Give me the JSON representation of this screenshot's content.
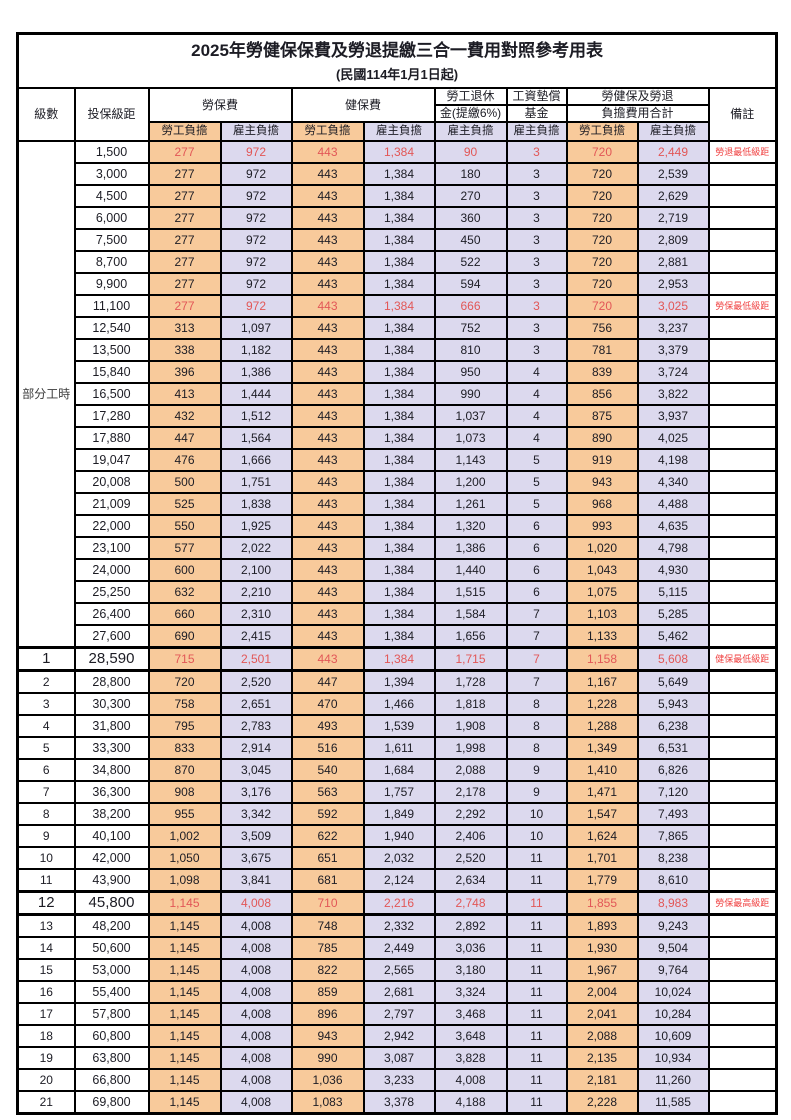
{
  "title": {
    "main": "2025年勞健保保費及勞退提繳三合一費用對照參考用表",
    "sub": "(民國114年1月1日起)"
  },
  "colors": {
    "employee_bg": "#f8ca9b",
    "employer_bg": "#dcd9ee",
    "num_red": "#e25757",
    "remark_red": "#f04343",
    "border": "#000000"
  },
  "table": {
    "header": {
      "level": "級數",
      "bracket": "投保級距",
      "labor_ins": "勞保費",
      "health_ins": "健保費",
      "pension1": "勞工退休",
      "pension2": "金(提繳6%)",
      "fund1": "工資墊償",
      "fund2": "基金",
      "total1": "勞健保及勞退",
      "total2": "負擔費用合計",
      "remark": "備註",
      "employee": "勞工負擔",
      "employer": "雇主負擔"
    }
  },
  "part_time": {
    "label": "部分工時",
    "rowspan": 23
  },
  "rows": [
    {
      "level": "",
      "bracket": "1,500",
      "values": [
        "277",
        "972",
        "443",
        "1,384",
        "90",
        "3",
        "720",
        "2,449"
      ],
      "remark": "勞退最低級距",
      "red": true,
      "em": false
    },
    {
      "level": "",
      "bracket": "3,000",
      "values": [
        "277",
        "972",
        "443",
        "1,384",
        "180",
        "3",
        "720",
        "2,539"
      ],
      "remark": "",
      "red": false,
      "em": false
    },
    {
      "level": "",
      "bracket": "4,500",
      "values": [
        "277",
        "972",
        "443",
        "1,384",
        "270",
        "3",
        "720",
        "2,629"
      ],
      "remark": "",
      "red": false,
      "em": false
    },
    {
      "level": "",
      "bracket": "6,000",
      "values": [
        "277",
        "972",
        "443",
        "1,384",
        "360",
        "3",
        "720",
        "2,719"
      ],
      "remark": "",
      "red": false,
      "em": false
    },
    {
      "level": "",
      "bracket": "7,500",
      "values": [
        "277",
        "972",
        "443",
        "1,384",
        "450",
        "3",
        "720",
        "2,809"
      ],
      "remark": "",
      "red": false,
      "em": false
    },
    {
      "level": "",
      "bracket": "8,700",
      "values": [
        "277",
        "972",
        "443",
        "1,384",
        "522",
        "3",
        "720",
        "2,881"
      ],
      "remark": "",
      "red": false,
      "em": false
    },
    {
      "level": "",
      "bracket": "9,900",
      "values": [
        "277",
        "972",
        "443",
        "1,384",
        "594",
        "3",
        "720",
        "2,953"
      ],
      "remark": "",
      "red": false,
      "em": false
    },
    {
      "level": "",
      "bracket": "11,100",
      "values": [
        "277",
        "972",
        "443",
        "1,384",
        "666",
        "3",
        "720",
        "3,025"
      ],
      "remark": "勞保最低級距",
      "red": true,
      "em": false
    },
    {
      "level": "",
      "bracket": "12,540",
      "values": [
        "313",
        "1,097",
        "443",
        "1,384",
        "752",
        "3",
        "756",
        "3,237"
      ],
      "remark": "",
      "red": false,
      "em": false
    },
    {
      "level": "",
      "bracket": "13,500",
      "values": [
        "338",
        "1,182",
        "443",
        "1,384",
        "810",
        "3",
        "781",
        "3,379"
      ],
      "remark": "",
      "red": false,
      "em": false
    },
    {
      "level": "",
      "bracket": "15,840",
      "values": [
        "396",
        "1,386",
        "443",
        "1,384",
        "950",
        "4",
        "839",
        "3,724"
      ],
      "remark": "",
      "red": false,
      "em": false
    },
    {
      "level": "",
      "bracket": "16,500",
      "values": [
        "413",
        "1,444",
        "443",
        "1,384",
        "990",
        "4",
        "856",
        "3,822"
      ],
      "remark": "",
      "red": false,
      "em": false
    },
    {
      "level": "",
      "bracket": "17,280",
      "values": [
        "432",
        "1,512",
        "443",
        "1,384",
        "1,037",
        "4",
        "875",
        "3,937"
      ],
      "remark": "",
      "red": false,
      "em": false
    },
    {
      "level": "",
      "bracket": "17,880",
      "values": [
        "447",
        "1,564",
        "443",
        "1,384",
        "1,073",
        "4",
        "890",
        "4,025"
      ],
      "remark": "",
      "red": false,
      "em": false
    },
    {
      "level": "",
      "bracket": "19,047",
      "values": [
        "476",
        "1,666",
        "443",
        "1,384",
        "1,143",
        "5",
        "919",
        "4,198"
      ],
      "remark": "",
      "red": false,
      "em": false
    },
    {
      "level": "",
      "bracket": "20,008",
      "values": [
        "500",
        "1,751",
        "443",
        "1,384",
        "1,200",
        "5",
        "943",
        "4,340"
      ],
      "remark": "",
      "red": false,
      "em": false
    },
    {
      "level": "",
      "bracket": "21,009",
      "values": [
        "525",
        "1,838",
        "443",
        "1,384",
        "1,261",
        "5",
        "968",
        "4,488"
      ],
      "remark": "",
      "red": false,
      "em": false
    },
    {
      "level": "",
      "bracket": "22,000",
      "values": [
        "550",
        "1,925",
        "443",
        "1,384",
        "1,320",
        "6",
        "993",
        "4,635"
      ],
      "remark": "",
      "red": false,
      "em": false
    },
    {
      "level": "",
      "bracket": "23,100",
      "values": [
        "577",
        "2,022",
        "443",
        "1,384",
        "1,386",
        "6",
        "1,020",
        "4,798"
      ],
      "remark": "",
      "red": false,
      "em": false
    },
    {
      "level": "",
      "bracket": "24,000",
      "values": [
        "600",
        "2,100",
        "443",
        "1,384",
        "1,440",
        "6",
        "1,043",
        "4,930"
      ],
      "remark": "",
      "red": false,
      "em": false
    },
    {
      "level": "",
      "bracket": "25,250",
      "values": [
        "632",
        "2,210",
        "443",
        "1,384",
        "1,515",
        "6",
        "1,075",
        "5,115"
      ],
      "remark": "",
      "red": false,
      "em": false
    },
    {
      "level": "",
      "bracket": "26,400",
      "values": [
        "660",
        "2,310",
        "443",
        "1,384",
        "1,584",
        "7",
        "1,103",
        "5,285"
      ],
      "remark": "",
      "red": false,
      "em": false
    },
    {
      "level": "",
      "bracket": "27,600",
      "values": [
        "690",
        "2,415",
        "443",
        "1,384",
        "1,656",
        "7",
        "1,133",
        "5,462"
      ],
      "remark": "",
      "red": false,
      "em": false
    },
    {
      "level": "1",
      "bracket": "28,590",
      "values": [
        "715",
        "2,501",
        "443",
        "1,384",
        "1,715",
        "7",
        "1,158",
        "5,608"
      ],
      "remark": "健保最低級距",
      "red": true,
      "em": true
    },
    {
      "level": "2",
      "bracket": "28,800",
      "values": [
        "720",
        "2,520",
        "447",
        "1,394",
        "1,728",
        "7",
        "1,167",
        "5,649"
      ],
      "remark": "",
      "red": false,
      "em": false
    },
    {
      "level": "3",
      "bracket": "30,300",
      "values": [
        "758",
        "2,651",
        "470",
        "1,466",
        "1,818",
        "8",
        "1,228",
        "5,943"
      ],
      "remark": "",
      "red": false,
      "em": false
    },
    {
      "level": "4",
      "bracket": "31,800",
      "values": [
        "795",
        "2,783",
        "493",
        "1,539",
        "1,908",
        "8",
        "1,288",
        "6,238"
      ],
      "remark": "",
      "red": false,
      "em": false
    },
    {
      "level": "5",
      "bracket": "33,300",
      "values": [
        "833",
        "2,914",
        "516",
        "1,611",
        "1,998",
        "8",
        "1,349",
        "6,531"
      ],
      "remark": "",
      "red": false,
      "em": false
    },
    {
      "level": "6",
      "bracket": "34,800",
      "values": [
        "870",
        "3,045",
        "540",
        "1,684",
        "2,088",
        "9",
        "1,410",
        "6,826"
      ],
      "remark": "",
      "red": false,
      "em": false
    },
    {
      "level": "7",
      "bracket": "36,300",
      "values": [
        "908",
        "3,176",
        "563",
        "1,757",
        "2,178",
        "9",
        "1,471",
        "7,120"
      ],
      "remark": "",
      "red": false,
      "em": false
    },
    {
      "level": "8",
      "bracket": "38,200",
      "values": [
        "955",
        "3,342",
        "592",
        "1,849",
        "2,292",
        "10",
        "1,547",
        "7,493"
      ],
      "remark": "",
      "red": false,
      "em": false
    },
    {
      "level": "9",
      "bracket": "40,100",
      "values": [
        "1,002",
        "3,509",
        "622",
        "1,940",
        "2,406",
        "10",
        "1,624",
        "7,865"
      ],
      "remark": "",
      "red": false,
      "em": false
    },
    {
      "level": "10",
      "bracket": "42,000",
      "values": [
        "1,050",
        "3,675",
        "651",
        "2,032",
        "2,520",
        "11",
        "1,701",
        "8,238"
      ],
      "remark": "",
      "red": false,
      "em": false
    },
    {
      "level": "11",
      "bracket": "43,900",
      "values": [
        "1,098",
        "3,841",
        "681",
        "2,124",
        "2,634",
        "11",
        "1,779",
        "8,610"
      ],
      "remark": "",
      "red": false,
      "em": false
    },
    {
      "level": "12",
      "bracket": "45,800",
      "values": [
        "1,145",
        "4,008",
        "710",
        "2,216",
        "2,748",
        "11",
        "1,855",
        "8,983"
      ],
      "remark": "勞保最高級距",
      "red": true,
      "em": true
    },
    {
      "level": "13",
      "bracket": "48,200",
      "values": [
        "1,145",
        "4,008",
        "748",
        "2,332",
        "2,892",
        "11",
        "1,893",
        "9,243"
      ],
      "remark": "",
      "red": false,
      "em": false
    },
    {
      "level": "14",
      "bracket": "50,600",
      "values": [
        "1,145",
        "4,008",
        "785",
        "2,449",
        "3,036",
        "11",
        "1,930",
        "9,504"
      ],
      "remark": "",
      "red": false,
      "em": false
    },
    {
      "level": "15",
      "bracket": "53,000",
      "values": [
        "1,145",
        "4,008",
        "822",
        "2,565",
        "3,180",
        "11",
        "1,967",
        "9,764"
      ],
      "remark": "",
      "red": false,
      "em": false
    },
    {
      "level": "16",
      "bracket": "55,400",
      "values": [
        "1,145",
        "4,008",
        "859",
        "2,681",
        "3,324",
        "11",
        "2,004",
        "10,024"
      ],
      "remark": "",
      "red": false,
      "em": false
    },
    {
      "level": "17",
      "bracket": "57,800",
      "values": [
        "1,145",
        "4,008",
        "896",
        "2,797",
        "3,468",
        "11",
        "2,041",
        "10,284"
      ],
      "remark": "",
      "red": false,
      "em": false
    },
    {
      "level": "18",
      "bracket": "60,800",
      "values": [
        "1,145",
        "4,008",
        "943",
        "2,942",
        "3,648",
        "11",
        "2,088",
        "10,609"
      ],
      "remark": "",
      "red": false,
      "em": false
    },
    {
      "level": "19",
      "bracket": "63,800",
      "values": [
        "1,145",
        "4,008",
        "990",
        "3,087",
        "3,828",
        "11",
        "2,135",
        "10,934"
      ],
      "remark": "",
      "red": false,
      "em": false
    },
    {
      "level": "20",
      "bracket": "66,800",
      "values": [
        "1,145",
        "4,008",
        "1,036",
        "3,233",
        "4,008",
        "11",
        "2,181",
        "11,260"
      ],
      "remark": "",
      "red": false,
      "em": false
    },
    {
      "level": "21",
      "bracket": "69,800",
      "values": [
        "1,145",
        "4,008",
        "1,083",
        "3,378",
        "4,188",
        "11",
        "2,228",
        "11,585"
      ],
      "remark": "",
      "red": false,
      "em": false
    }
  ]
}
